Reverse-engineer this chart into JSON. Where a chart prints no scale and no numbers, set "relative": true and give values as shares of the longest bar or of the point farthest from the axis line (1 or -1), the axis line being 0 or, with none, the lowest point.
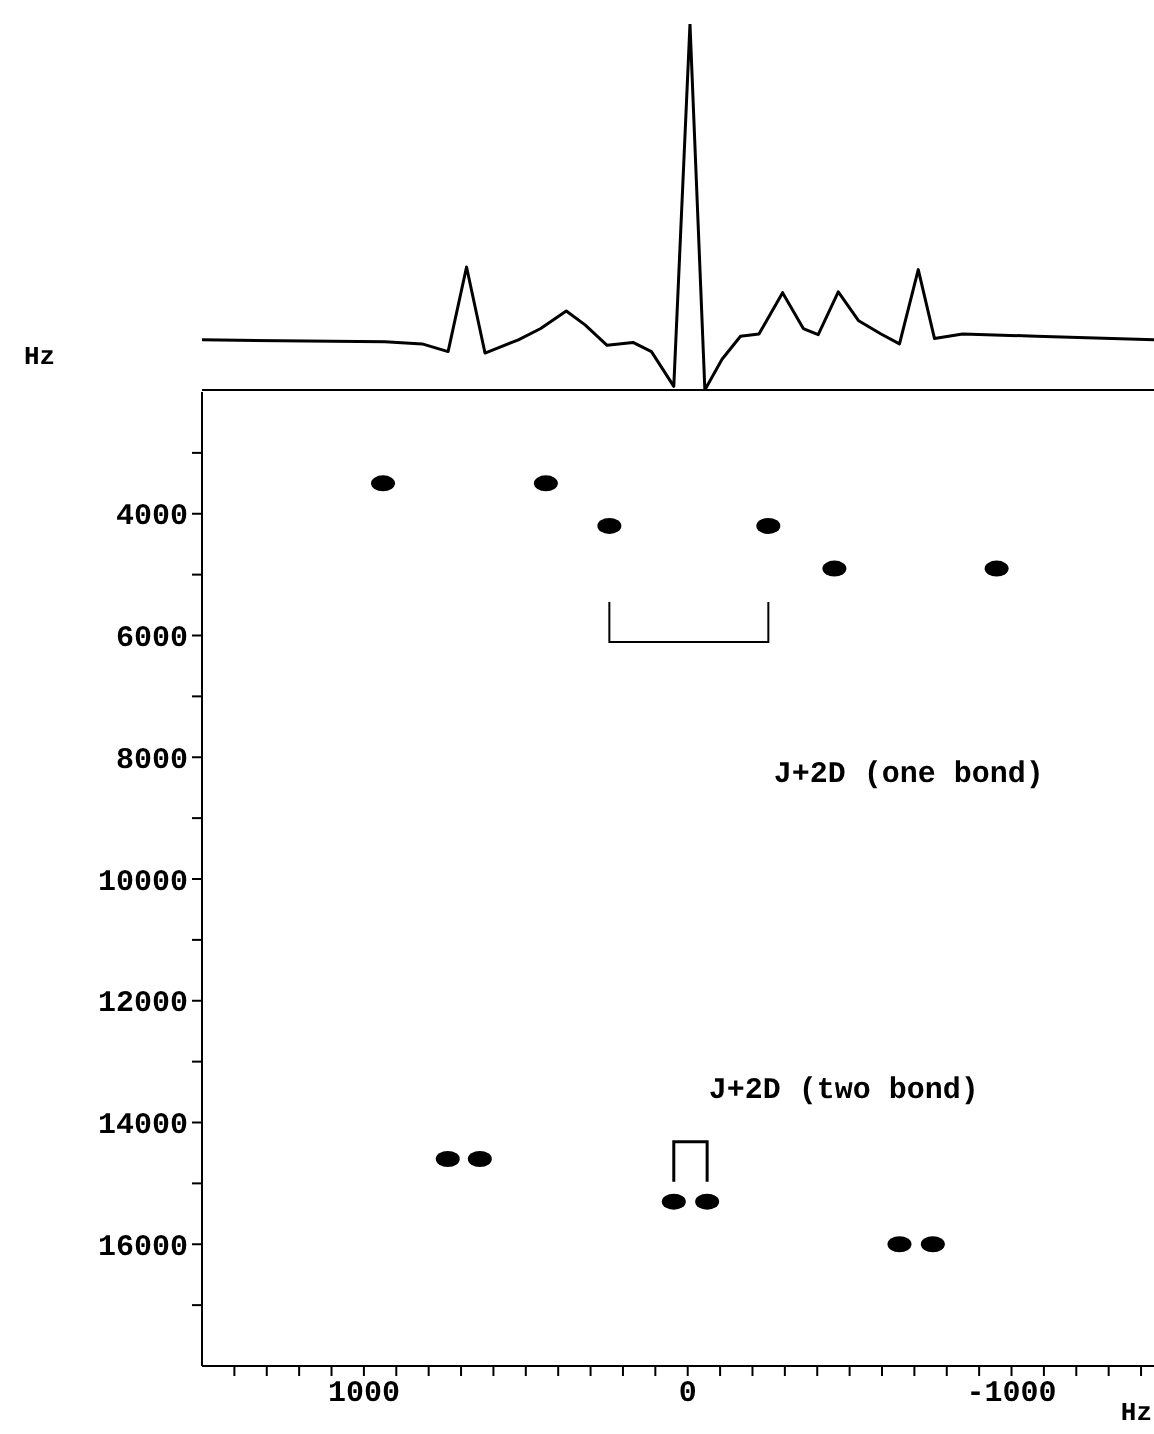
{
  "chart_data": [
    {
      "type": "line",
      "relative": true,
      "tick_labels": false,
      "xlim": [
        1500,
        -1440
      ],
      "color": "#000000",
      "x": [
        1500,
        935,
        820,
        740,
        683,
        626,
        523,
        454,
        375,
        317,
        249,
        169,
        112,
        43,
        -7,
        -53,
        -106,
        -163,
        -220,
        -293,
        -357,
        -403,
        -465,
        -528,
        -597,
        -654,
        -712,
        -762,
        -849,
        -1077,
        -1440
      ],
      "values": [
        0.137,
        0.132,
        0.126,
        0.105,
        0.336,
        0.101,
        0.137,
        0.168,
        0.216,
        0.178,
        0.122,
        0.13,
        0.105,
        0.01,
        1,
        0,
        0.084,
        0.147,
        0.153,
        0.266,
        0.168,
        0.151,
        0.268,
        0.189,
        0.153,
        0.126,
        0.329,
        0.141,
        0.153,
        0.147,
        0.137
      ]
    },
    {
      "type": "scatter",
      "marker": "circle",
      "color": "#000000",
      "xlabel": "Hz",
      "ylabel": "Hz",
      "annotations": [
        "J+2D (one bond)",
        "J+2D (two bond)"
      ],
      "xlim": [
        1500,
        -1440
      ],
      "ylim": [
        18000,
        2000
      ],
      "xticks": [
        {
          "value": 1400,
          "label": null
        },
        {
          "value": 1300,
          "label": null
        },
        {
          "value": 1200,
          "label": null
        },
        {
          "value": 1100,
          "label": null
        },
        1000,
        {
          "value": 900,
          "label": null
        },
        {
          "value": 800,
          "label": null
        },
        {
          "value": 700,
          "label": null
        },
        {
          "value": 600,
          "label": null
        },
        {
          "value": 500,
          "label": null
        },
        {
          "value": 400,
          "label": null
        },
        {
          "value": 300,
          "label": null
        },
        {
          "value": 200,
          "label": null
        },
        {
          "value": 100,
          "label": null
        },
        0,
        {
          "value": -100,
          "label": null
        },
        {
          "value": -200,
          "label": null
        },
        {
          "value": -300,
          "label": null
        },
        {
          "value": -400,
          "label": null
        },
        {
          "value": -500,
          "label": null
        },
        {
          "value": -600,
          "label": null
        },
        {
          "value": -700,
          "label": null
        },
        {
          "value": -800,
          "label": null
        },
        {
          "value": -900,
          "label": null
        },
        -1000,
        {
          "value": -1100,
          "label": null
        },
        {
          "value": -1200,
          "label": null
        },
        {
          "value": -1300,
          "label": null
        },
        {
          "value": -1400,
          "label": null
        }
      ],
      "yticks": [
        {
          "value": 3000,
          "label": null
        },
        4000,
        {
          "value": 5000,
          "label": null
        },
        6000,
        {
          "value": 7000,
          "label": null
        },
        8000,
        {
          "value": 9000,
          "label": null
        },
        10000,
        {
          "value": 11000,
          "label": null
        },
        12000,
        {
          "value": 13000,
          "label": null
        },
        14000,
        {
          "value": 15000,
          "label": null
        },
        16000,
        {
          "value": 17000,
          "label": null
        }
      ],
      "x": [
        941,
        438,
        242,
        -249,
        -453,
        -954,
        741,
        642,
        43,
        -60,
        -654,
        -757
      ],
      "values": [
        3500,
        3500,
        4200,
        4200,
        4900,
        4900,
        14600,
        14600,
        15300,
        15300,
        16000,
        16000
      ]
    }
  ]
}
